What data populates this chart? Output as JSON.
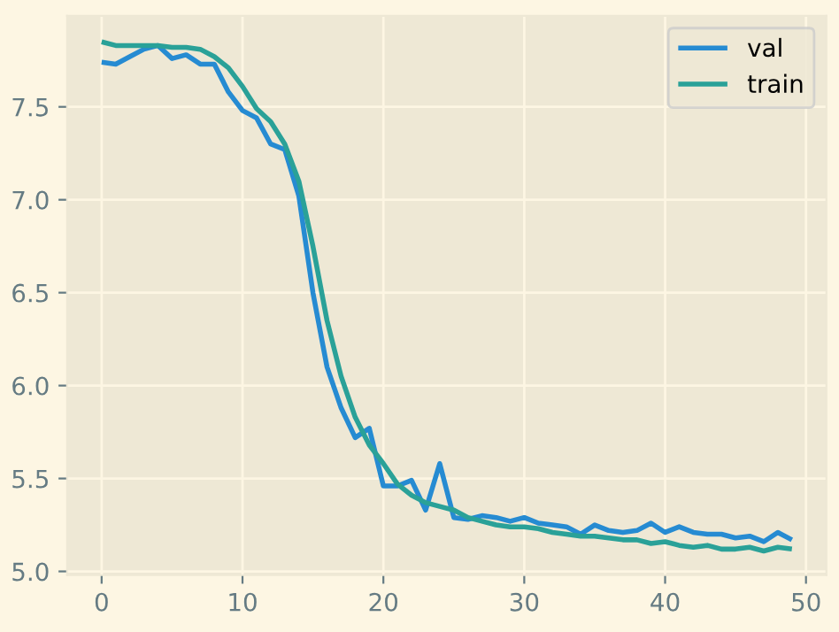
{
  "chart_data": {
    "type": "line",
    "x": [
      0,
      1,
      2,
      3,
      4,
      5,
      6,
      7,
      8,
      9,
      10,
      11,
      12,
      13,
      14,
      15,
      16,
      17,
      18,
      19,
      20,
      21,
      22,
      23,
      24,
      25,
      26,
      27,
      28,
      29,
      30,
      31,
      32,
      33,
      34,
      35,
      36,
      37,
      38,
      39,
      40,
      41,
      42,
      43,
      44,
      45,
      46,
      47,
      48,
      49
    ],
    "series": [
      {
        "name": "val",
        "color": "#268bd2",
        "values": [
          7.74,
          7.73,
          7.77,
          7.81,
          7.83,
          7.76,
          7.78,
          7.73,
          7.73,
          7.58,
          7.48,
          7.44,
          7.3,
          7.27,
          7.02,
          6.5,
          6.1,
          5.88,
          5.72,
          5.77,
          5.46,
          5.46,
          5.49,
          5.33,
          5.58,
          5.29,
          5.28,
          5.3,
          5.29,
          5.27,
          5.29,
          5.26,
          5.25,
          5.24,
          5.2,
          5.25,
          5.22,
          5.21,
          5.22,
          5.26,
          5.21,
          5.24,
          5.21,
          5.2,
          5.2,
          5.18,
          5.19,
          5.16,
          5.21,
          5.17
        ]
      },
      {
        "name": "train",
        "color": "#2aa198",
        "values": [
          7.85,
          7.83,
          7.83,
          7.83,
          7.83,
          7.82,
          7.82,
          7.81,
          7.77,
          7.71,
          7.61,
          7.49,
          7.42,
          7.3,
          7.1,
          6.75,
          6.35,
          6.05,
          5.83,
          5.68,
          5.58,
          5.47,
          5.41,
          5.37,
          5.35,
          5.33,
          5.29,
          5.27,
          5.25,
          5.24,
          5.24,
          5.23,
          5.21,
          5.2,
          5.19,
          5.19,
          5.18,
          5.17,
          5.17,
          5.15,
          5.16,
          5.14,
          5.13,
          5.14,
          5.12,
          5.12,
          5.13,
          5.11,
          5.13,
          5.12
        ]
      }
    ],
    "xlim": [
      -2.45,
      51.45
    ],
    "ylim": [
      4.98,
      7.99
    ],
    "xticks": [
      0,
      10,
      20,
      30,
      40,
      50
    ],
    "yticks": [
      {
        "value": 5.0,
        "label": "5.0"
      },
      {
        "value": 5.5,
        "label": "5.5"
      },
      {
        "value": 6.0,
        "label": "6.0"
      },
      {
        "value": 6.5,
        "label": "6.5"
      },
      {
        "value": 7.0,
        "label": "7.0"
      },
      {
        "value": 7.5,
        "label": "7.5"
      }
    ],
    "grid": true,
    "legend": "top right",
    "marker": "none",
    "line_style": "solid"
  }
}
